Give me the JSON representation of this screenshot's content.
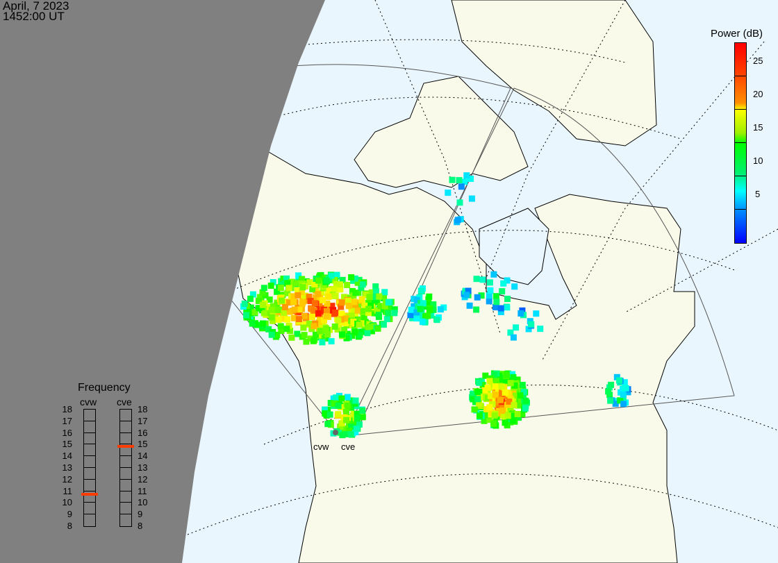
{
  "header": {
    "date": "April, 7 2023",
    "time": "1452:00 UT"
  },
  "colorbar": {
    "title": "Power (dB)",
    "range": [
      0,
      30
    ],
    "ticks": [
      "5",
      "10",
      "15",
      "20",
      "25"
    ],
    "colors": [
      "#0000ff",
      "#00ffff",
      "#00ff00",
      "#ffff00",
      "#ff8000",
      "#ff0000"
    ]
  },
  "frequency": {
    "title": "Frequency",
    "unit_range": [
      8,
      18
    ],
    "labels": [
      "18",
      "17",
      "16",
      "15",
      "14",
      "13",
      "12",
      "11",
      "10",
      "9",
      "8"
    ],
    "radars": [
      {
        "name": "cvw",
        "value_mhz": 10.7
      },
      {
        "name": "cve",
        "value_mhz": 14.8
      }
    ],
    "marker_color": "#ff3c00"
  },
  "sites": {
    "cvw": "cvw",
    "cve": "cve"
  },
  "colors": {
    "ocean": "#eaf6fd",
    "land": "#fafaea",
    "night": "#808080"
  }
}
